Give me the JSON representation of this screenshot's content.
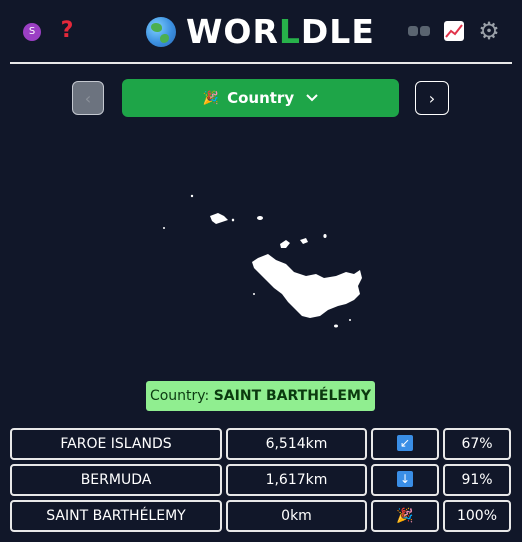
{
  "header": {
    "avatar_initial": "S",
    "help_symbol": "?",
    "logo_part1": "WOR",
    "logo_part2": "L",
    "logo_part3": "DLE",
    "gear_symbol": "⚙"
  },
  "controls": {
    "prev_symbol": "‹",
    "next_symbol": "›",
    "mode_icon": "🎉",
    "mode_label": "Country",
    "mode_chevron": "⌄"
  },
  "answer": {
    "prefix": "Country: ",
    "name": "SAINT BARTHÉLEMY"
  },
  "guesses": [
    {
      "name": "FAROE ISLANDS",
      "distance": "6,514km",
      "direction": "↙",
      "direction_icon": "arrow-down-left-icon",
      "proximity": "67%"
    },
    {
      "name": "BERMUDA",
      "distance": "1,617km",
      "direction": "↓",
      "direction_icon": "arrow-down-icon",
      "proximity": "91%"
    },
    {
      "name": "SAINT BARTHÉLEMY",
      "distance": "0km",
      "direction": "🎉",
      "direction_icon": "party-popper-icon",
      "proximity": "100%"
    }
  ],
  "colors": {
    "background": "#111729",
    "accent_green": "#1ea548",
    "answer_bg": "#90ee90",
    "arrow_blue": "#3a8ee6"
  }
}
